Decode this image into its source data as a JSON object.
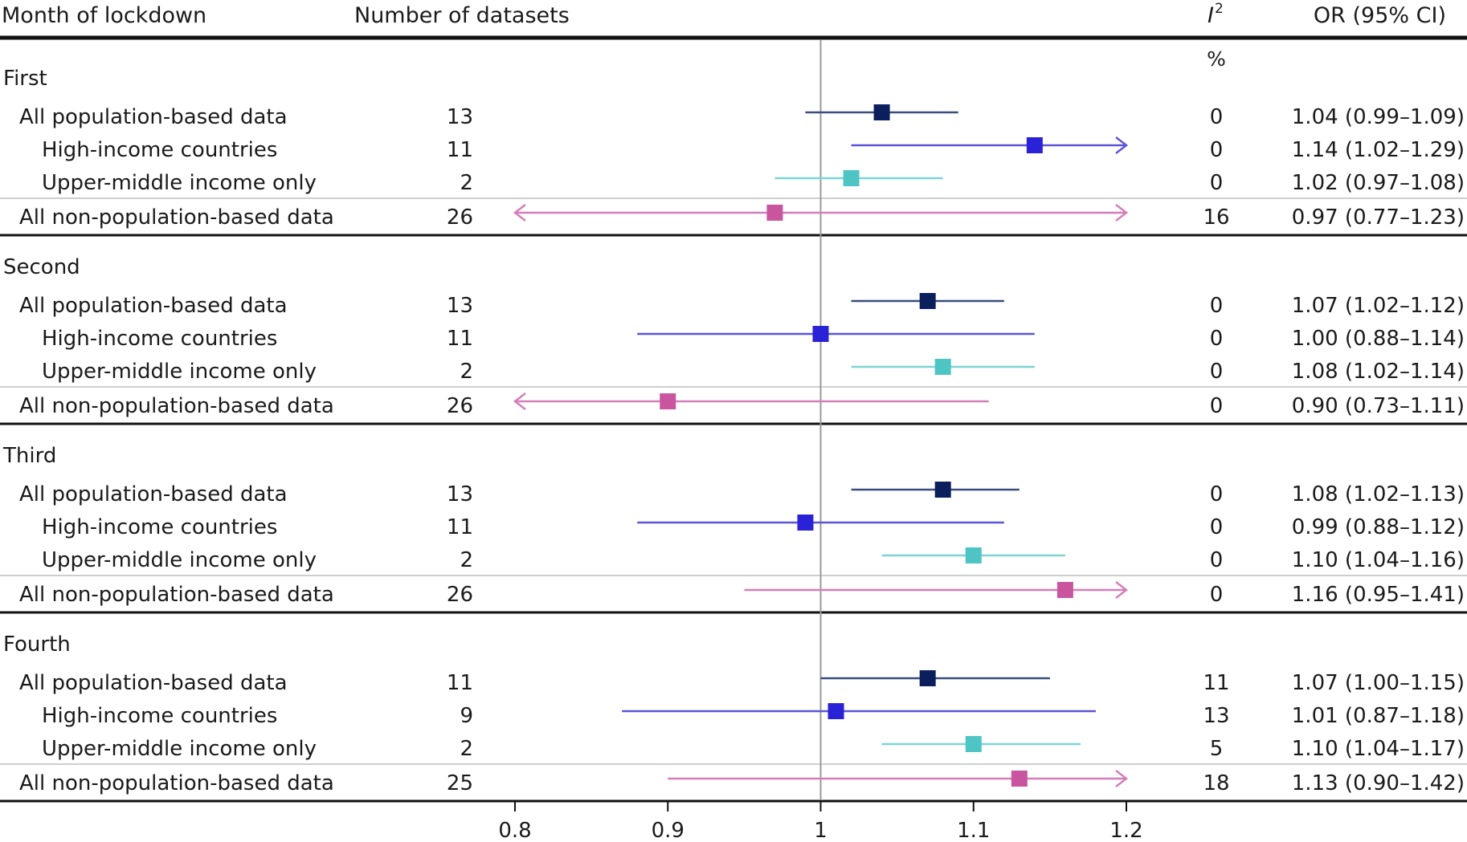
{
  "chart_data": {
    "type": "forest",
    "headers": {
      "month": "Month of lockdown",
      "datasets": "Number of datasets",
      "i2_symbol": "I",
      "i2_sup": "2",
      "i2_unit": "%",
      "or": "OR (95% CI)"
    },
    "x_range": [
      0.8,
      1.2
    ],
    "x_ticks": [
      "0.8",
      "0.9",
      "1",
      "1.1",
      "1.2"
    ],
    "reference_line": 1.0,
    "group_colors": {
      "all_pop": "#0b1f5c",
      "high_income": "#2a22d6",
      "upper_middle": "#4fc4c4",
      "non_pop": "#c8559e"
    },
    "line_colors": {
      "all_pop": "#3a4d7c",
      "high_income": "#5b55d6",
      "upper_middle": "#7fd3d3",
      "non_pop": "#d47fb8"
    },
    "groups": [
      {
        "label": "First",
        "rows": [
          {
            "label": "All population-based data",
            "kind": "all_pop",
            "n": "13",
            "i2": "0",
            "est": 1.04,
            "lo": 0.99,
            "hi": 1.09,
            "or_text": "1.04 (0.99–1.09)"
          },
          {
            "label": "High-income countries",
            "kind": "high_income",
            "n": "11",
            "i2": "0",
            "est": 1.14,
            "lo": 1.02,
            "hi": 1.29,
            "or_text": "1.14 (1.02–1.29)"
          },
          {
            "label": "Upper-middle income only",
            "kind": "upper_middle",
            "n": "2",
            "i2": "0",
            "est": 1.02,
            "lo": 0.97,
            "hi": 1.08,
            "or_text": "1.02 (0.97–1.08)"
          },
          {
            "label": "All non-population-based data",
            "kind": "non_pop",
            "n": "26",
            "i2": "16",
            "est": 0.97,
            "lo": 0.77,
            "hi": 1.23,
            "or_text": "0.97 (0.77–1.23)"
          }
        ]
      },
      {
        "label": "Second",
        "rows": [
          {
            "label": "All population-based data",
            "kind": "all_pop",
            "n": "13",
            "i2": "0",
            "est": 1.07,
            "lo": 1.02,
            "hi": 1.12,
            "or_text": "1.07 (1.02–1.12)"
          },
          {
            "label": "High-income countries",
            "kind": "high_income",
            "n": "11",
            "i2": "0",
            "est": 1.0,
            "lo": 0.88,
            "hi": 1.14,
            "or_text": "1.00 (0.88–1.14)"
          },
          {
            "label": "Upper-middle income only",
            "kind": "upper_middle",
            "n": "2",
            "i2": "0",
            "est": 1.08,
            "lo": 1.02,
            "hi": 1.14,
            "or_text": "1.08 (1.02–1.14)"
          },
          {
            "label": "All non-population-based data",
            "kind": "non_pop",
            "n": "26",
            "i2": "0",
            "est": 0.9,
            "lo": 0.73,
            "hi": 1.11,
            "or_text": "0.90 (0.73–1.11)"
          }
        ]
      },
      {
        "label": "Third",
        "rows": [
          {
            "label": "All population-based data",
            "kind": "all_pop",
            "n": "13",
            "i2": "0",
            "est": 1.08,
            "lo": 1.02,
            "hi": 1.13,
            "or_text": "1.08 (1.02–1.13)"
          },
          {
            "label": "High-income countries",
            "kind": "high_income",
            "n": "11",
            "i2": "0",
            "est": 0.99,
            "lo": 0.88,
            "hi": 1.12,
            "or_text": "0.99 (0.88–1.12)"
          },
          {
            "label": "Upper-middle income only",
            "kind": "upper_middle",
            "n": "2",
            "i2": "0",
            "est": 1.1,
            "lo": 1.04,
            "hi": 1.16,
            "or_text": "1.10 (1.04–1.16)"
          },
          {
            "label": "All non-population-based data",
            "kind": "non_pop",
            "n": "26",
            "i2": "0",
            "est": 1.16,
            "lo": 0.95,
            "hi": 1.41,
            "or_text": "1.16 (0.95–1.41)"
          }
        ]
      },
      {
        "label": "Fourth",
        "rows": [
          {
            "label": "All population-based data",
            "kind": "all_pop",
            "n": "11",
            "i2": "11",
            "est": 1.07,
            "lo": 1.0,
            "hi": 1.15,
            "or_text": "1.07 (1.00–1.15)"
          },
          {
            "label": "High-income countries",
            "kind": "high_income",
            "n": "9",
            "i2": "13",
            "est": 1.01,
            "lo": 0.87,
            "hi": 1.18,
            "or_text": "1.01 (0.87–1.18)"
          },
          {
            "label": "Upper-middle income only",
            "kind": "upper_middle",
            "n": "2",
            "i2": "5",
            "est": 1.1,
            "lo": 1.04,
            "hi": 1.17,
            "or_text": "1.10 (1.04–1.17)"
          },
          {
            "label": "All non-population-based data",
            "kind": "non_pop",
            "n": "25",
            "i2": "18",
            "est": 1.13,
            "lo": 0.9,
            "hi": 1.42,
            "or_text": "1.13 (0.90–1.42)"
          }
        ]
      }
    ]
  }
}
